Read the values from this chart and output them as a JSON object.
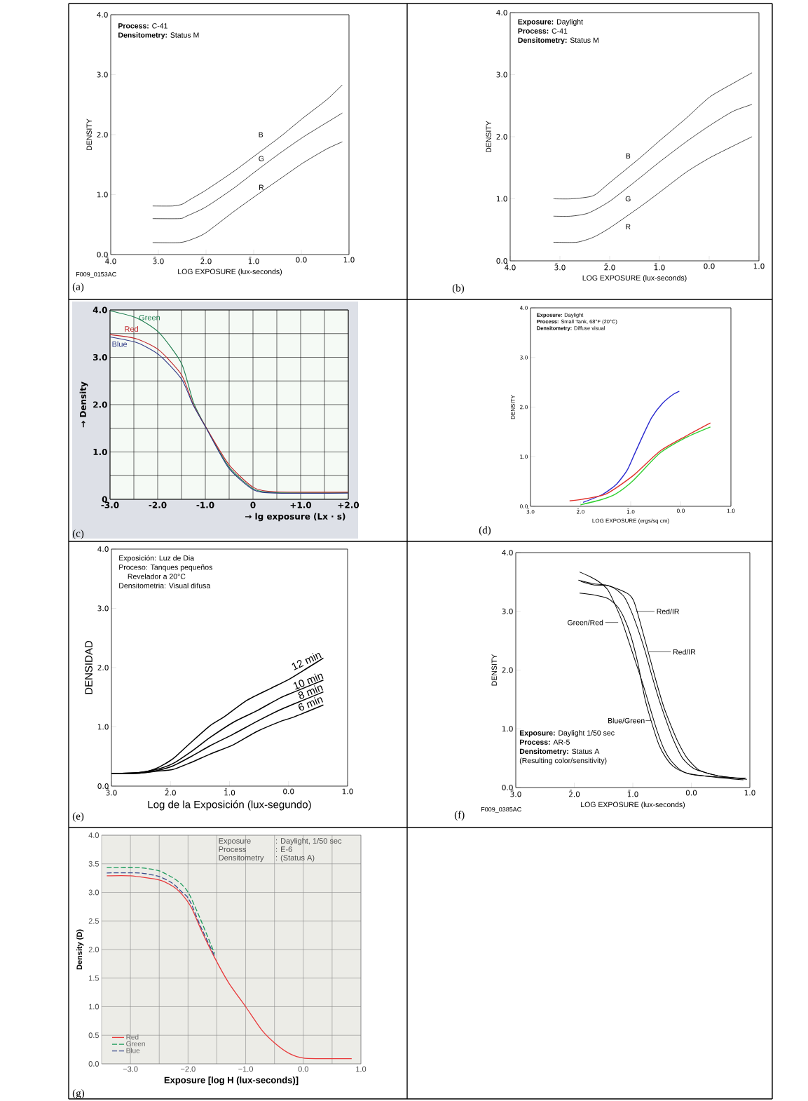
{
  "chart_data": [
    {
      "type": "line",
      "annotations": [
        "(a)",
        "**Process:** C-41",
        "**Densitometry:** Status M",
        "F009_0153AC"
      ],
      "xlabel": "LOG EXPOSURE (lux-seconds)",
      "ylabel": "DENSITY",
      "xlim": [
        -4,
        1
      ],
      "ylim": [
        0,
        4
      ],
      "xticks": [
        {
          "value": -4,
          "label": "4̄.0"
        },
        {
          "value": -3,
          "label": "3̄.0"
        },
        {
          "value": -2,
          "label": "2̄.0"
        },
        {
          "value": -1,
          "label": "1̄.0"
        },
        {
          "value": 0,
          "label": "0.0"
        },
        {
          "value": 1,
          "label": "1.0"
        }
      ],
      "yticks": [
        {
          "value": 0,
          "label": "0.0"
        },
        {
          "value": 1,
          "label": "1.0"
        },
        {
          "value": 2,
          "label": "2.0"
        },
        {
          "value": 3,
          "label": "3.0"
        },
        {
          "value": 4,
          "label": "4.0"
        }
      ],
      "series": [
        {
          "name": "B",
          "color": "#000000",
          "x": [
            -3.12,
            -2.7,
            -2.5,
            -2.31,
            -2.01,
            -1.43,
            -0.94,
            -0.45,
            0.04,
            0.53,
            0.86
          ],
          "values": [
            0.81,
            0.81,
            0.84,
            0.93,
            1.07,
            1.38,
            1.67,
            1.96,
            2.28,
            2.58,
            2.83
          ]
        },
        {
          "name": "G",
          "color": "#000000",
          "x": [
            -3.12,
            -2.55,
            -2.41,
            -2.01,
            -1.43,
            -0.94,
            -0.45,
            0.04,
            0.53,
            0.86
          ],
          "values": [
            0.6,
            0.6,
            0.64,
            0.79,
            1.1,
            1.4,
            1.69,
            1.96,
            2.2,
            2.36
          ]
        },
        {
          "name": "R",
          "color": "#000000",
          "x": [
            -3.12,
            -2.55,
            -2.31,
            -2.01,
            -1.43,
            -0.94,
            -0.45,
            0.04,
            0.53,
            0.86
          ],
          "values": [
            0.2,
            0.2,
            0.25,
            0.36,
            0.71,
            0.99,
            1.26,
            1.53,
            1.76,
            1.88
          ]
        }
      ]
    },
    {
      "type": "line",
      "annotations": [
        "(b)",
        "**Exposure:** Daylight",
        "**Process:** C-41",
        "**Densitometry:** Status M"
      ],
      "xlabel": "LOG EXPOSURE (lux-seconds)",
      "ylabel": "DENSITY",
      "xlim": [
        -4,
        1
      ],
      "ylim": [
        0,
        4
      ],
      "xticks": [
        {
          "value": -4,
          "label": "4̄.0"
        },
        {
          "value": -3,
          "label": "3̄.0"
        },
        {
          "value": -2,
          "label": "2̄.0"
        },
        {
          "value": -1,
          "label": "1̄.0"
        },
        {
          "value": 0,
          "label": "0.0"
        },
        {
          "value": 1,
          "label": "1.0"
        }
      ],
      "yticks": [
        {
          "value": 0,
          "label": "0.0"
        },
        {
          "value": 1,
          "label": "1.0"
        },
        {
          "value": 2,
          "label": "2.0"
        },
        {
          "value": 3,
          "label": "3.0"
        },
        {
          "value": 4,
          "label": "4.0"
        }
      ],
      "series": [
        {
          "name": "B",
          "color": "#000000",
          "x": [
            -3.13,
            -2.76,
            -2.33,
            -2.0,
            -1.39,
            -1.02,
            -0.46,
            0.01,
            0.48,
            0.86
          ],
          "values": [
            1.0,
            1.0,
            1.05,
            1.26,
            1.66,
            1.92,
            2.3,
            2.64,
            2.86,
            3.03
          ]
        },
        {
          "name": "G",
          "color": "#000000",
          "x": [
            -3.13,
            -2.78,
            -2.43,
            -2.0,
            -1.39,
            -1.02,
            -0.46,
            0.01,
            0.48,
            0.86
          ],
          "values": [
            0.72,
            0.72,
            0.77,
            0.96,
            1.34,
            1.58,
            1.92,
            2.18,
            2.41,
            2.52
          ]
        },
        {
          "name": "R",
          "color": "#000000",
          "x": [
            -3.13,
            -2.66,
            -2.33,
            -2.0,
            -1.39,
            -1.02,
            -0.46,
            0.01,
            0.48,
            0.86
          ],
          "values": [
            0.3,
            0.3,
            0.38,
            0.53,
            0.87,
            1.09,
            1.43,
            1.66,
            1.85,
            2.0
          ]
        }
      ]
    },
    {
      "type": "line",
      "annotations": [
        "(c)"
      ],
      "xlabel": "→ lg exposure (Lx · s)",
      "ylabel": "→ Density",
      "xlim": [
        -3,
        2
      ],
      "ylim": [
        0,
        4
      ],
      "grid": true,
      "xticks": [
        {
          "value": -3,
          "label": "-3.0"
        },
        {
          "value": -2.5,
          "label": null
        },
        {
          "value": -2,
          "label": "-2.0"
        },
        {
          "value": -1.5,
          "label": null
        },
        {
          "value": -1,
          "label": "-1.0"
        },
        {
          "value": -0.5,
          "label": null
        },
        0,
        {
          "value": 0.5,
          "label": null
        },
        {
          "value": 1,
          "label": "+1.0"
        },
        {
          "value": 1.5,
          "label": null
        },
        {
          "value": 2,
          "label": "+2.0"
        }
      ],
      "yticks": [
        0,
        {
          "value": 0.5,
          "label": null
        },
        {
          "value": 1,
          "label": "1.0"
        },
        {
          "value": 1.5,
          "label": null
        },
        {
          "value": 2,
          "label": "2.0"
        },
        {
          "value": 2.5,
          "label": null
        },
        {
          "value": 3,
          "label": "3.0"
        },
        {
          "value": 3.5,
          "label": null
        },
        {
          "value": 4,
          "label": "4.0"
        }
      ],
      "series": [
        {
          "name": "Green",
          "color": "#1e7d4f",
          "x": [
            -3,
            -2.44,
            -1.97,
            -1.5,
            -1.25,
            -0.98,
            -0.51,
            0.01,
            0.48,
            2.0
          ],
          "values": [
            3.98,
            3.83,
            3.52,
            2.87,
            2.05,
            1.51,
            0.69,
            0.22,
            0.14,
            0.14
          ]
        },
        {
          "name": "Red",
          "color": "#c0282d",
          "x": [
            -3,
            -2.44,
            -1.97,
            -1.5,
            -1.25,
            -0.98,
            -0.51,
            0.01,
            0.48,
            2.0
          ],
          "values": [
            3.48,
            3.39,
            3.15,
            2.63,
            2.0,
            1.51,
            0.74,
            0.25,
            0.16,
            0.15
          ]
        },
        {
          "name": "Blue",
          "color": "#2f3a86",
          "x": [
            -3,
            -2.44,
            -1.97,
            -1.5,
            -1.25,
            -0.98,
            -0.51,
            0.01,
            0.48,
            2.0
          ],
          "values": [
            3.43,
            3.31,
            3.05,
            2.54,
            1.98,
            1.5,
            0.66,
            0.2,
            0.13,
            0.13
          ]
        }
      ]
    },
    {
      "type": "line",
      "annotations": [
        "(d)",
        "**Exposure:** Daylight",
        "**Process:** Small Tank, 68°F (20°C)",
        "**Densitometry:** Diffuse visual"
      ],
      "xlabel": "LOG EXPOSURE (ergs/sq cm)",
      "ylabel": "DENSITY",
      "xlim": [
        -3,
        1
      ],
      "ylim": [
        0,
        4
      ],
      "xticks": [
        {
          "value": -3,
          "label": "3̄.0"
        },
        {
          "value": -2,
          "label": "2̄.0"
        },
        {
          "value": -1,
          "label": "1̄.0"
        },
        {
          "value": 0,
          "label": "0.0"
        },
        {
          "value": 1,
          "label": "1.0"
        }
      ],
      "yticks": [
        {
          "value": 0,
          "label": "0.0"
        },
        {
          "value": 1,
          "label": "1.0"
        },
        {
          "value": 2,
          "label": "2.0"
        },
        {
          "value": 3,
          "label": "3.0"
        },
        {
          "value": 4,
          "label": "4.0"
        }
      ],
      "series": [
        {
          "color": "#2a2ad0",
          "x": [
            -1.95,
            -1.56,
            -1.28,
            -1.07,
            -0.93,
            -0.75,
            -0.58,
            -0.37,
            -0.16,
            -0.03
          ],
          "values": [
            0.08,
            0.24,
            0.45,
            0.73,
            1.04,
            1.44,
            1.79,
            2.07,
            2.25,
            2.32
          ]
        },
        {
          "color": "#e0302a",
          "x": [
            -2.22,
            -1.98,
            -1.49,
            -0.95,
            -0.42,
            0.11,
            0.59
          ],
          "values": [
            0.11,
            0.14,
            0.25,
            0.62,
            1.11,
            1.42,
            1.68
          ]
        },
        {
          "color": "#30d030",
          "x": [
            -2.0,
            -1.6,
            -1.3,
            -0.95,
            -0.42,
            0.11,
            0.59
          ],
          "values": [
            0.03,
            0.13,
            0.25,
            0.52,
            1.07,
            1.39,
            1.6
          ]
        }
      ]
    },
    {
      "type": "line",
      "annotations": [
        "(e)",
        "Exposición: Luz de Dia",
        "Proceso: Tanques pequeños",
        "Revelador a 20°C",
        "Densitometria: Visual difusa"
      ],
      "xlabel": "Log de la Exposición (lux-segundo)",
      "ylabel": "DENSIDAD",
      "xlim": [
        -3,
        1
      ],
      "ylim": [
        0,
        4
      ],
      "xticks": [
        {
          "value": -3,
          "label": "3̄.0"
        },
        {
          "value": -2,
          "label": "2̄.0"
        },
        {
          "value": -1,
          "label": "1̄.0"
        },
        {
          "value": 0,
          "label": "0.0"
        },
        {
          "value": 1,
          "label": "1.0"
        }
      ],
      "yticks": [
        {
          "value": 0,
          "label": "0.0"
        },
        {
          "value": 1,
          "label": "1.0"
        },
        {
          "value": 2,
          "label": "2.0"
        },
        {
          "value": 3,
          "label": "3.0"
        },
        {
          "value": 4,
          "label": "4.0"
        }
      ],
      "series": [
        {
          "name": "12 min",
          "color": "#000000",
          "x": [
            -3,
            -2.52,
            -2.24,
            -1.96,
            -1.65,
            -1.33,
            -1.09,
            -0.7,
            -0.3,
            0.02,
            0.33,
            0.59
          ],
          "values": [
            0.21,
            0.23,
            0.3,
            0.46,
            0.74,
            1.02,
            1.17,
            1.45,
            1.65,
            1.81,
            2.0,
            2.16
          ]
        },
        {
          "name": "10 min",
          "color": "#000000",
          "x": [
            -3,
            -2.52,
            -2.24,
            -1.96,
            -1.65,
            -1.33,
            -0.93,
            -0.54,
            -0.14,
            0.1,
            0.59
          ],
          "values": [
            0.21,
            0.23,
            0.28,
            0.38,
            0.58,
            0.82,
            1.08,
            1.27,
            1.49,
            1.59,
            1.79
          ]
        },
        {
          "name": "8 min",
          "color": "#000000",
          "x": [
            -3,
            -2.52,
            -2.24,
            -1.96,
            -1.65,
            -1.33,
            -0.93,
            -0.54,
            -0.14,
            0.1,
            0.59
          ],
          "values": [
            0.21,
            0.22,
            0.26,
            0.34,
            0.5,
            0.68,
            0.88,
            1.09,
            1.29,
            1.39,
            1.59
          ]
        },
        {
          "name": "6 min",
          "color": "#000000",
          "x": [
            -3,
            -2.52,
            -2.24,
            -1.96,
            -1.65,
            -1.33,
            -0.93,
            -0.54,
            -0.14,
            0.1,
            0.59
          ],
          "values": [
            0.21,
            0.22,
            0.25,
            0.28,
            0.4,
            0.54,
            0.7,
            0.92,
            1.09,
            1.17,
            1.37
          ]
        }
      ]
    },
    {
      "type": "line",
      "annotations": [
        "(f)",
        "**Exposure:** Daylight 1/50 sec",
        "**Process:** AR-5",
        "**Densitometry:** Status A",
        "(Resulting color/sensitivity)",
        "F009_0385AC"
      ],
      "xlabel": "LOG EXPOSURE (lux-seconds)",
      "ylabel": "DENSITY",
      "xlim": [
        -3,
        1
      ],
      "ylim": [
        0,
        4
      ],
      "xticks": [
        {
          "value": -3,
          "label": "3̄.0"
        },
        {
          "value": -2,
          "label": "2̄.0"
        },
        {
          "value": -1,
          "label": "1̄.0"
        },
        {
          "value": 0,
          "label": "0.0"
        },
        {
          "value": 1,
          "label": "1.0"
        }
      ],
      "yticks": [
        {
          "value": 0,
          "label": "0.0"
        },
        {
          "value": 1,
          "label": "1.0"
        },
        {
          "value": 2,
          "label": "2.0"
        },
        {
          "value": 3,
          "label": "3.0"
        },
        {
          "value": 4,
          "label": "4.0"
        }
      ],
      "series": [
        {
          "name": "Green/Red",
          "color": "#000000",
          "x": [
            -1.91,
            -1.75,
            -1.59,
            -1.43,
            -1.31,
            -1.19,
            -1.07,
            -0.95,
            -0.83,
            -0.71,
            -0.59,
            -0.47,
            -0.35,
            -0.19,
            0.01,
            0.45,
            0.93
          ],
          "values": [
            3.67,
            3.6,
            3.51,
            3.37,
            3.13,
            2.85,
            2.49,
            2.13,
            1.77,
            1.37,
            0.98,
            0.66,
            0.46,
            0.3,
            0.22,
            0.18,
            0.16
          ]
        },
        {
          "name": "Red/IR",
          "color": "#000000",
          "x": [
            -1.89,
            -1.67,
            -1.43,
            -1.23,
            -1.07,
            -0.99,
            -0.93,
            -0.83,
            -0.71,
            -0.59,
            -0.47,
            -0.35,
            -0.23,
            -0.07,
            0.13,
            0.45,
            0.95
          ],
          "values": [
            3.51,
            3.45,
            3.44,
            3.37,
            3.29,
            3.19,
            3.01,
            2.65,
            2.21,
            1.77,
            1.37,
            1.06,
            0.78,
            0.5,
            0.3,
            0.2,
            0.14
          ]
        },
        {
          "name": "Red/IR",
          "color": "#000000",
          "x": [
            -1.93,
            -1.67,
            -1.47,
            -1.31,
            -1.15,
            -1.03,
            -0.91,
            -0.79,
            -0.67,
            -0.55,
            -0.43,
            -0.31,
            -0.15,
            0.05,
            0.45,
            0.91
          ],
          "values": [
            3.53,
            3.47,
            3.45,
            3.39,
            3.25,
            3.01,
            2.69,
            2.32,
            1.89,
            1.49,
            1.14,
            0.82,
            0.5,
            0.32,
            0.2,
            0.15
          ]
        },
        {
          "name": "Blue/Green",
          "color": "#000000",
          "x": [
            -1.91,
            -1.67,
            -1.43,
            -1.27,
            -1.15,
            -1.03,
            -0.91,
            -0.79,
            -0.67,
            -0.55,
            -0.43,
            -0.31,
            -0.15,
            0.05,
            0.45,
            0.89
          ],
          "values": [
            3.31,
            3.28,
            3.22,
            3.09,
            2.89,
            2.57,
            2.1,
            1.5,
            1.08,
            0.72,
            0.5,
            0.36,
            0.27,
            0.22,
            0.17,
            0.13
          ]
        }
      ]
    },
    {
      "type": "line",
      "annotations": [
        "(g)",
        "Exposure",
        ": Daylight, 1/50 sec",
        "Process",
        ": E-6",
        "Densitometry",
        ": (Status A)"
      ],
      "xlabel": "Exposure [log H (lux-seconds)]",
      "ylabel": "Density (D)",
      "xlim": [
        -3.5,
        1
      ],
      "ylim": [
        0,
        4
      ],
      "grid": true,
      "legend": "bottom left",
      "xticks": [
        {
          "value": -3,
          "label": "−3.0"
        },
        {
          "value": -2.5,
          "label": null
        },
        {
          "value": -2,
          "label": "−2.0"
        },
        {
          "value": -1.5,
          "label": null
        },
        {
          "value": -1,
          "label": "−1.0"
        },
        {
          "value": -0.5,
          "label": null
        },
        {
          "value": 0,
          "label": "0.0"
        },
        {
          "value": 0.5,
          "label": null
        },
        {
          "value": 1,
          "label": "1.0"
        }
      ],
      "yticks": [
        {
          "value": 0,
          "label": "0.0"
        },
        {
          "value": 0.5,
          "label": "0.5"
        },
        {
          "value": 1,
          "label": "1.0"
        },
        {
          "value": 1.5,
          "label": "1.5"
        },
        {
          "value": 2,
          "label": "2.0"
        },
        {
          "value": 2.5,
          "label": "2.5"
        },
        {
          "value": 3,
          "label": "3.0"
        },
        {
          "value": 3.5,
          "label": "3.5"
        },
        {
          "value": 4,
          "label": "4.0"
        }
      ],
      "series": [
        {
          "name": "Red",
          "color": "#e8393b",
          "line_style": "solid",
          "x": [
            -3.41,
            -3.0,
            -2.51,
            -2.27,
            -2.11,
            -1.94,
            -1.78,
            -1.54,
            -1.29,
            -1.0,
            -0.72,
            -0.48,
            -0.24,
            0.01,
            0.41,
            0.84
          ],
          "values": [
            3.29,
            3.29,
            3.22,
            3.11,
            2.97,
            2.73,
            2.36,
            1.86,
            1.41,
            1.0,
            0.59,
            0.35,
            0.18,
            0.1,
            0.09,
            0.09
          ]
        },
        {
          "name": "Green",
          "color": "#1a9a5a",
          "line_style": "dashed",
          "x": [
            -3.41,
            -2.84,
            -2.51,
            -2.27,
            -2.11,
            -1.98,
            -1.78,
            -1.54
          ],
          "values": [
            3.43,
            3.43,
            3.38,
            3.26,
            3.14,
            2.97,
            2.52,
            1.93
          ]
        },
        {
          "name": "Blue",
          "color": "#3a4a8a",
          "line_style": "dashed",
          "x": [
            -3.41,
            -2.84,
            -2.51,
            -2.27,
            -2.11,
            -2.02,
            -1.94,
            -1.78,
            -1.54
          ],
          "values": [
            3.34,
            3.34,
            3.28,
            3.16,
            3.01,
            2.93,
            2.79,
            2.4,
            1.89
          ]
        }
      ]
    }
  ]
}
